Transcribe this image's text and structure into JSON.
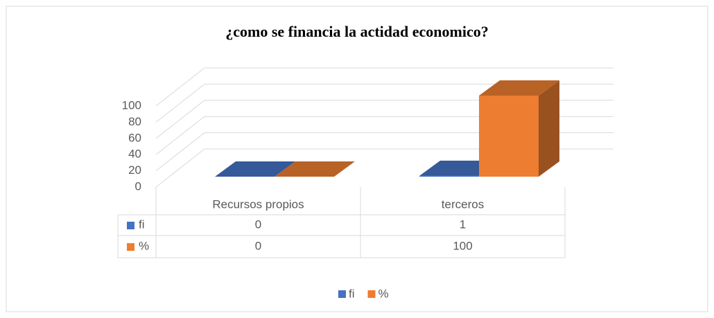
{
  "chart_data": {
    "type": "bar3d",
    "title": "¿como se financia la actidad economico?",
    "categories": [
      "Recursos propios",
      "terceros"
    ],
    "series": [
      {
        "name": "fi",
        "color": "#4472c4",
        "values": [
          0,
          1
        ]
      },
      {
        "name": "%",
        "color": "#ed7d31",
        "values": [
          0,
          100
        ]
      }
    ],
    "ylim": [
      0,
      100
    ],
    "yticks": [
      0,
      20,
      40,
      60,
      80,
      100
    ],
    "grid": true,
    "data_table": true,
    "legend": "bottom"
  }
}
